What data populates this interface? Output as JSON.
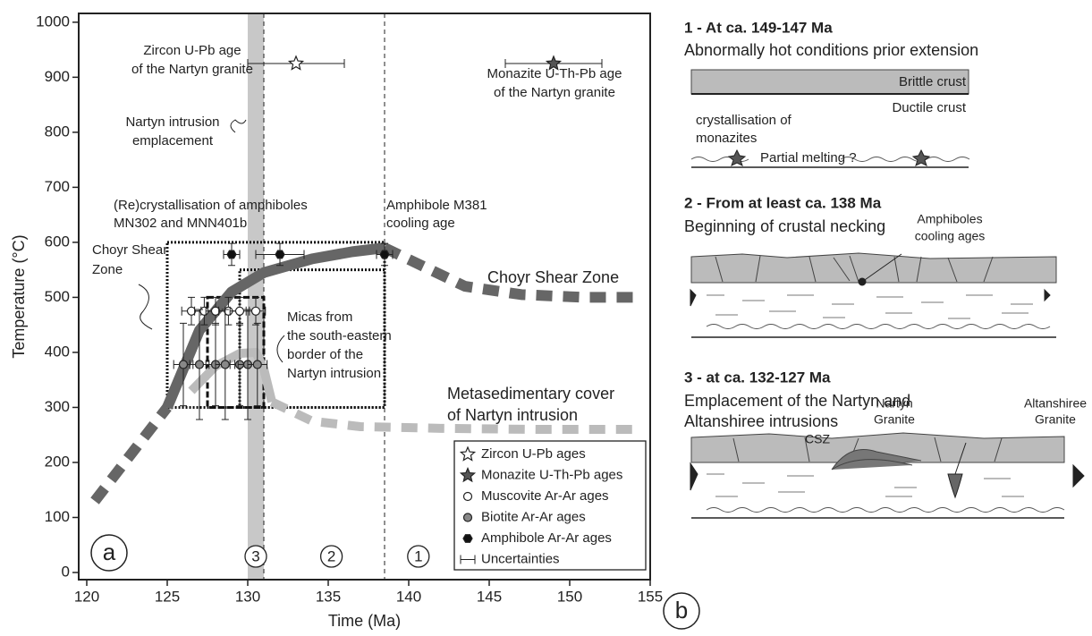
{
  "chart_data": {
    "type": "scatter",
    "panel_label": "a",
    "x_label": "Time (Ma)",
    "y_label": "Temperature (°C)",
    "xlim": [
      119.5,
      155
    ],
    "ylim": [
      -13,
      1016
    ],
    "xticks": [
      120,
      125,
      130,
      135,
      140,
      145,
      150,
      155
    ],
    "yticks": [
      0,
      100,
      200,
      300,
      400,
      500,
      600,
      700,
      800,
      900,
      1000
    ],
    "vband": [
      130,
      131
    ],
    "vlines": [
      131,
      138.5
    ],
    "boxes": [
      {
        "style": "dotted",
        "x": [
          125,
          138.5
        ],
        "y": [
          300,
          600
        ]
      },
      {
        "style": "dashed",
        "x": [
          127.5,
          131
        ],
        "y": [
          300,
          500
        ]
      },
      {
        "style": "dotted",
        "x": [
          129.5,
          138.5
        ],
        "y": [
          300,
          550
        ]
      }
    ],
    "curves": [
      {
        "name": [
          "Choyr Shear Zone"
        ],
        "color": "#666666",
        "parts": [
          {
            "style": "dashed",
            "x": [
              120.5,
              125
            ],
            "values": [
              130,
              300
            ]
          },
          {
            "style": "solid",
            "x": [
              125,
              127,
              129,
              131,
              134,
              136.5,
              138.5
            ],
            "values": [
              300,
              440,
              510,
              545,
              570,
              583,
              590
            ]
          },
          {
            "style": "dashed",
            "x": [
              138.5,
              141,
              143.5,
              147,
              151,
              154.5
            ],
            "values": [
              590,
              555,
              520,
              505,
              500,
              500
            ]
          }
        ]
      },
      {
        "name": [
          "Metasedimentary cover",
          "of Nartyn intrusion"
        ],
        "color": "#bbbbbb",
        "parts": [
          {
            "style": "solid",
            "x": [
              126.5,
              128,
              129.5,
              130.5,
              131,
              131.5
            ],
            "values": [
              330,
              375,
              398,
              400,
              370,
              310
            ]
          },
          {
            "style": "dashed",
            "x": [
              131.5,
              134,
              137,
              142,
              148,
              154.5
            ],
            "values": [
              310,
              275,
              265,
              262,
              260,
              260
            ]
          }
        ]
      }
    ],
    "series": [
      {
        "name": "Zircon U-Pb ages",
        "marker": "star-open",
        "color": "#ffffff",
        "x": [
          133
        ],
        "values": [
          925
        ],
        "xerr": [
          3
        ],
        "yerr": [
          0
        ]
      },
      {
        "name": "Monazite U-Th-Pb ages",
        "marker": "star",
        "color": "#555555",
        "x": [
          149
        ],
        "values": [
          925
        ],
        "xerr": [
          3
        ],
        "yerr": [
          0
        ]
      },
      {
        "name": "Muscovite Ar-Ar ages",
        "marker": "circle-open",
        "color": "#ffffff",
        "x": [
          126.5,
          127.3,
          128,
          128.8,
          129.5,
          130.5
        ],
        "values": [
          475,
          475,
          475,
          475,
          475,
          475
        ],
        "xerr": [
          0.6,
          0.6,
          0.6,
          0.6,
          0.6,
          0.6
        ],
        "yerr": [
          25,
          25,
          25,
          25,
          25,
          25
        ]
      },
      {
        "name": "Biotite Ar-Ar ages",
        "marker": "circle",
        "color": "#888888",
        "x": [
          126,
          127,
          128,
          128.6,
          129.5,
          130,
          130.6
        ],
        "values": [
          378,
          378,
          378,
          378,
          378,
          378,
          378
        ],
        "xerr": [
          0.6,
          0.6,
          0.6,
          0.6,
          0.6,
          0.6,
          0.6
        ],
        "yerr": [
          75,
          100,
          75,
          100,
          75,
          100,
          75
        ]
      },
      {
        "name": "Amphibole Ar-Ar ages",
        "marker": "hexagon",
        "color": "#111111",
        "x": [
          129,
          132,
          138.5
        ],
        "values": [
          578,
          578,
          578
        ],
        "xerr": [
          0.5,
          1.5,
          0.5
        ],
        "yerr": [
          20,
          20,
          20
        ]
      }
    ],
    "uncertainty_label": "Uncertainties",
    "zones": [
      {
        "label": "3",
        "x": 130.5
      },
      {
        "label": "2",
        "x": 135.2
      },
      {
        "label": "1",
        "x": 140.6
      }
    ],
    "annotations": [
      [
        "Zircon U-Pb age",
        "of the Nartyn granite"
      ],
      [
        "Monazite U-Th-Pb age",
        "of the Nartyn granite"
      ],
      [
        "Nartyn intrusion",
        "emplacement"
      ],
      [
        "(Re)crystallisation of amphiboles",
        "MN302 and MNN401b"
      ],
      [
        "Amphibole M381",
        "cooling age"
      ],
      [
        "Choyr Shear",
        "Zone"
      ],
      [
        "Micas from",
        "the south-eastern",
        "border of the",
        "Nartyn intrusion"
      ]
    ]
  },
  "panel_b": {
    "label": "b",
    "stage1": {
      "heading": "1 - At ca. 149-147 Ma",
      "subtitle": "Abnormally hot conditions prior extension",
      "brittle": "Brittle crust",
      "ductile": "Ductile crust",
      "crystallisation": [
        "crystallisation of",
        "monazites"
      ],
      "melting": "Partial melting ?"
    },
    "stage2": {
      "heading": "2 - From at least ca. 138 Ma",
      "subtitle": "Beginning of crustal necking",
      "amphiboles": [
        "Amphiboles",
        "cooling ages"
      ]
    },
    "stage3": {
      "heading": "3 - at ca. 132-127 Ma",
      "subtitle": [
        "Emplacement of the Nartyn and",
        "Altanshiree intrusions"
      ],
      "csz": "CSZ",
      "nartyn": [
        "Nartyn",
        "Granite"
      ],
      "altanshiree": [
        "Altanshiree",
        "Granite"
      ]
    }
  }
}
